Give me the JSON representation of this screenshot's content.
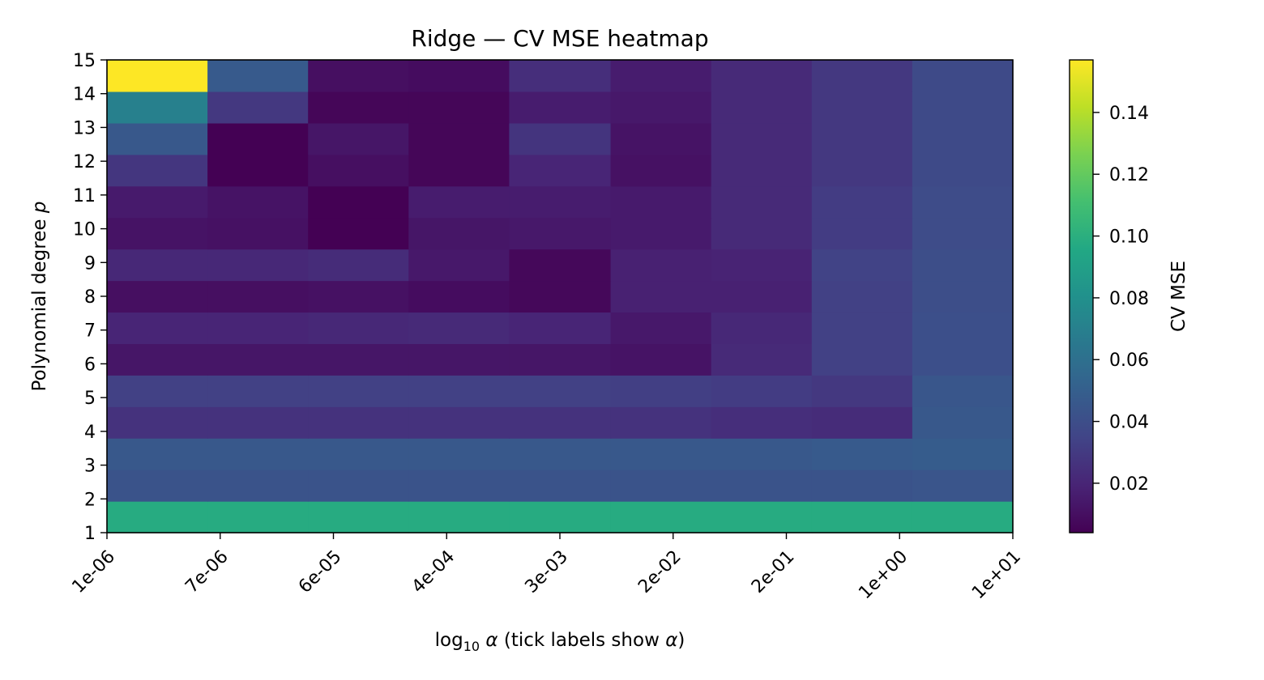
{
  "chart_data": {
    "type": "heatmap",
    "title": "Ridge — CV MSE heatmap",
    "xlabel": {
      "prefix": "log",
      "sub": "10",
      "symbol": "α",
      "note_open": "(tick labels show ",
      "note_symbol": "α",
      "note_close": ")"
    },
    "ylabel": {
      "text": "Polynomial degree ",
      "symbol": "p"
    },
    "colorbar_label": "CV MSE",
    "colormap": "viridis",
    "vmin": 0.004,
    "vmax": 0.157,
    "x_tick_labels": [
      "1e-06",
      "7e-06",
      "6e-05",
      "4e-04",
      "3e-03",
      "2e-02",
      "2e-01",
      "1e+00",
      "1e+01"
    ],
    "y_tick_labels": [
      "1",
      "2",
      "3",
      "4",
      "5",
      "6",
      "7",
      "8",
      "9",
      "10",
      "11",
      "12",
      "13",
      "14",
      "15"
    ],
    "colorbar_ticks": [
      "0.02",
      "0.04",
      "0.06",
      "0.08",
      "0.10",
      "0.12",
      "0.14"
    ],
    "x_cell_edges": [
      0.0,
      0.111,
      0.222,
      0.333,
      0.444,
      0.556,
      0.667,
      0.778,
      0.889,
      1.0
    ],
    "y_cell_edges": [
      1.0,
      1.933,
      2.867,
      3.8,
      4.733,
      5.667,
      6.6,
      7.533,
      8.467,
      9.4,
      10.333,
      11.267,
      12.2,
      13.133,
      14.067,
      15.0
    ],
    "z": [
      [
        0.098,
        0.098,
        0.098,
        0.098,
        0.098,
        0.098,
        0.098,
        0.098,
        0.098
      ],
      [
        0.043,
        0.043,
        0.043,
        0.043,
        0.043,
        0.043,
        0.043,
        0.043,
        0.044
      ],
      [
        0.046,
        0.046,
        0.046,
        0.046,
        0.046,
        0.046,
        0.046,
        0.047,
        0.048
      ],
      [
        0.026,
        0.026,
        0.026,
        0.026,
        0.026,
        0.026,
        0.024,
        0.023,
        0.046
      ],
      [
        0.033,
        0.033,
        0.033,
        0.033,
        0.033,
        0.032,
        0.031,
        0.029,
        0.045
      ],
      [
        0.013,
        0.013,
        0.013,
        0.013,
        0.013,
        0.012,
        0.022,
        0.033,
        0.041
      ],
      [
        0.02,
        0.02,
        0.021,
        0.022,
        0.02,
        0.014,
        0.021,
        0.033,
        0.041
      ],
      [
        0.01,
        0.01,
        0.011,
        0.009,
        0.007,
        0.018,
        0.018,
        0.033,
        0.04
      ],
      [
        0.021,
        0.021,
        0.023,
        0.014,
        0.007,
        0.018,
        0.019,
        0.034,
        0.04
      ],
      [
        0.012,
        0.011,
        0.004,
        0.013,
        0.014,
        0.015,
        0.022,
        0.031,
        0.039
      ],
      [
        0.015,
        0.012,
        0.004,
        0.016,
        0.016,
        0.015,
        0.022,
        0.031,
        0.039
      ],
      [
        0.028,
        0.004,
        0.01,
        0.006,
        0.02,
        0.011,
        0.022,
        0.029,
        0.038
      ],
      [
        0.046,
        0.004,
        0.013,
        0.006,
        0.027,
        0.012,
        0.022,
        0.029,
        0.038
      ],
      [
        0.07,
        0.029,
        0.006,
        0.006,
        0.016,
        0.014,
        0.022,
        0.029,
        0.038
      ],
      [
        0.157,
        0.047,
        0.01,
        0.009,
        0.024,
        0.016,
        0.022,
        0.029,
        0.038
      ]
    ]
  }
}
